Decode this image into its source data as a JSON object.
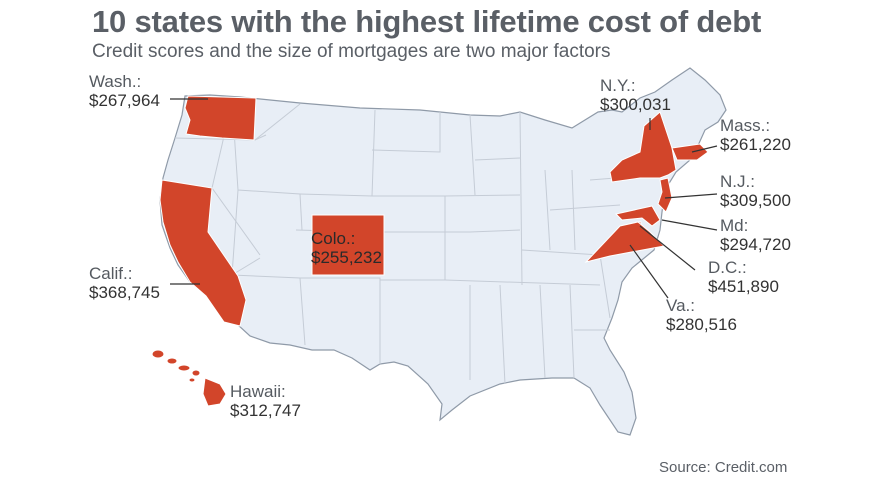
{
  "header": {
    "title": "10 states with the highest lifetime cost of debt",
    "subtitle": "Credit scores and the size of mortgages are two major factors"
  },
  "colors": {
    "highlight": "#d2452a",
    "land": "#e8eef6",
    "border": "#c5ccd6",
    "outline": "#8f9aa8"
  },
  "states": [
    {
      "name": "Wash.:",
      "amount": "$267,964"
    },
    {
      "name": "Calif.:",
      "amount": "$368,745"
    },
    {
      "name": "Colo.:",
      "amount": "$255,232"
    },
    {
      "name": "Hawaii:",
      "amount": "$312,747"
    },
    {
      "name": "N.Y.:",
      "amount": "$300,031"
    },
    {
      "name": "Mass.:",
      "amount": "$261,220"
    },
    {
      "name": "N.J.:",
      "amount": "$309,500"
    },
    {
      "name": "Md:",
      "amount": "$294,720"
    },
    {
      "name": "D.C.:",
      "amount": "$451,890"
    },
    {
      "name": "Va.:",
      "amount": "$280,516"
    }
  ],
  "source": "Source: Credit.com"
}
